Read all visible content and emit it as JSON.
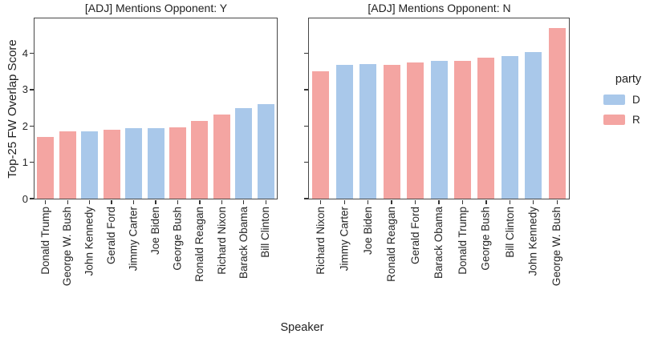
{
  "chart_data": {
    "type": "bar",
    "xlabel": "Speaker",
    "ylabel": "Top-25 FW Overlap Score",
    "yticks": [
      "0",
      "1",
      "2",
      "3",
      "4"
    ],
    "ylim": [
      0,
      4.96
    ],
    "grid": false,
    "legend": {
      "title": "party",
      "position": "right",
      "entries": [
        {
          "label": "D",
          "color": "#a9c8ea"
        },
        {
          "label": "R",
          "color": "#f4a5a2"
        }
      ]
    },
    "facets": [
      {
        "title": "[ADJ] Mentions Opponent: Y",
        "bars": [
          {
            "speaker": "Donald Trump",
            "party": "R",
            "value": 1.7
          },
          {
            "speaker": "George W. Bush",
            "party": "R",
            "value": 1.86
          },
          {
            "speaker": "John Kennedy",
            "party": "D",
            "value": 1.85
          },
          {
            "speaker": "Gerald Ford",
            "party": "R",
            "value": 1.9
          },
          {
            "speaker": "Jimmy Carter",
            "party": "D",
            "value": 1.95
          },
          {
            "speaker": "Joe Biden",
            "party": "D",
            "value": 1.94
          },
          {
            "speaker": "George Bush",
            "party": "R",
            "value": 1.98
          },
          {
            "speaker": "Ronald Reagan",
            "party": "R",
            "value": 2.14
          },
          {
            "speaker": "Richard Nixon",
            "party": "R",
            "value": 2.33
          },
          {
            "speaker": "Barack Obama",
            "party": "D",
            "value": 2.5
          },
          {
            "speaker": "Bill Clinton",
            "party": "D",
            "value": 2.61
          }
        ]
      },
      {
        "title": "[ADJ] Mentions Opponent: N",
        "bars": [
          {
            "speaker": "Richard Nixon",
            "party": "R",
            "value": 3.52
          },
          {
            "speaker": "Jimmy Carter",
            "party": "D",
            "value": 3.68
          },
          {
            "speaker": "Joe Biden",
            "party": "D",
            "value": 3.71
          },
          {
            "speaker": "Ronald Reagan",
            "party": "R",
            "value": 3.7
          },
          {
            "speaker": "Gerald Ford",
            "party": "R",
            "value": 3.76
          },
          {
            "speaker": "Barack Obama",
            "party": "D",
            "value": 3.8
          },
          {
            "speaker": "Donald Trump",
            "party": "R",
            "value": 3.8
          },
          {
            "speaker": "George Bush",
            "party": "R",
            "value": 3.88
          },
          {
            "speaker": "Bill Clinton",
            "party": "D",
            "value": 3.93
          },
          {
            "speaker": "John Kennedy",
            "party": "D",
            "value": 4.04
          },
          {
            "speaker": "George W. Bush",
            "party": "R",
            "value": 4.71
          }
        ]
      }
    ]
  }
}
